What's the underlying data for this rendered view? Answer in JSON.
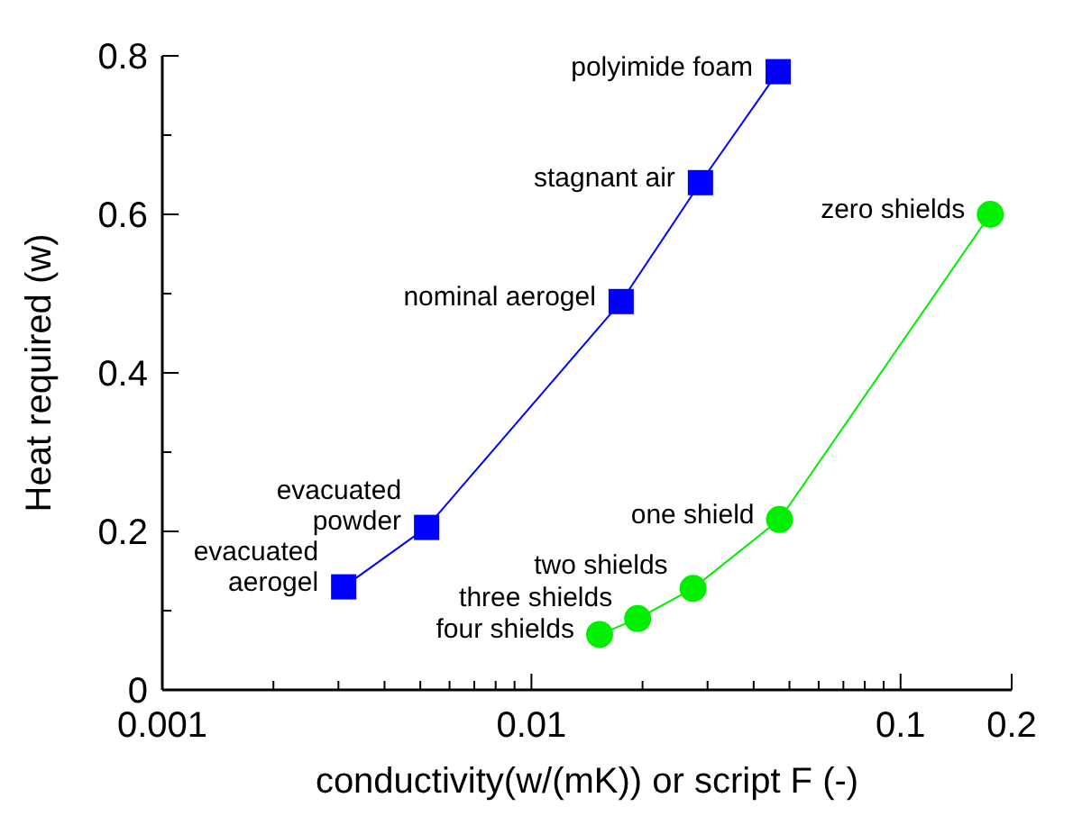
{
  "chart_data": {
    "type": "line",
    "xlabel": "conductivity(w/(mK)) or script F (-)",
    "ylabel": "Heat required (w)",
    "log": "x",
    "xlim": [
      0.001,
      0.2
    ],
    "ylim": [
      0,
      0.8
    ],
    "xticks": [
      0.001,
      {
        "value": 0.002,
        "label": null
      },
      {
        "value": 0.003,
        "label": null
      },
      {
        "value": 0.004,
        "label": null
      },
      {
        "value": 0.005,
        "label": null
      },
      {
        "value": 0.006,
        "label": null
      },
      {
        "value": 0.007,
        "label": null
      },
      {
        "value": 0.008,
        "label": null
      },
      {
        "value": 0.009,
        "label": null
      },
      0.01,
      {
        "value": 0.02,
        "label": null
      },
      {
        "value": 0.03,
        "label": null
      },
      {
        "value": 0.04,
        "label": null
      },
      {
        "value": 0.05,
        "label": null
      },
      {
        "value": 0.06,
        "label": null
      },
      {
        "value": 0.07,
        "label": null
      },
      {
        "value": 0.08,
        "label": null
      },
      {
        "value": 0.09,
        "label": null
      },
      0.1,
      0.2
    ],
    "yticks": [
      0,
      {
        "value": 0.1,
        "label": null
      },
      0.2,
      {
        "value": 0.3,
        "label": null
      },
      0.4,
      {
        "value": 0.5,
        "label": null
      },
      0.6,
      {
        "value": 0.7,
        "label": null
      },
      0.8
    ],
    "series": [
      {
        "color": "#0000ff",
        "marker": "square",
        "x": [
          0.0031,
          0.0052,
          0.0175,
          0.0287,
          0.0466
        ],
        "values": [
          0.13,
          0.205,
          0.49,
          0.64,
          0.78
        ]
      },
      {
        "color": "#00ee00",
        "marker": "circle",
        "x": [
          0.0153,
          0.0194,
          0.0274,
          0.047,
          0.175
        ],
        "values": [
          0.07,
          0.09,
          0.128,
          0.215,
          0.6
        ]
      }
    ],
    "annotations": [
      {
        "text": "evacuated\naerogel",
        "x": 0.0031,
        "y": 0.13
      },
      {
        "text": "evacuated\npowder",
        "x": 0.0052,
        "y": 0.205
      },
      {
        "text": "nominal aerogel",
        "x": 0.0175,
        "y": 0.49
      },
      {
        "text": "stagnant air",
        "x": 0.0287,
        "y": 0.64
      },
      {
        "text": "polyimide foam",
        "x": 0.0466,
        "y": 0.78
      },
      {
        "text": "four shields",
        "x": 0.0153,
        "y": 0.07
      },
      {
        "text": "three shields",
        "x": 0.0194,
        "y": 0.09
      },
      {
        "text": "two shields",
        "x": 0.0274,
        "y": 0.128
      },
      {
        "text": "one shield",
        "x": 0.047,
        "y": 0.215
      },
      {
        "text": "zero shields",
        "x": 0.175,
        "y": 0.6
      }
    ]
  }
}
